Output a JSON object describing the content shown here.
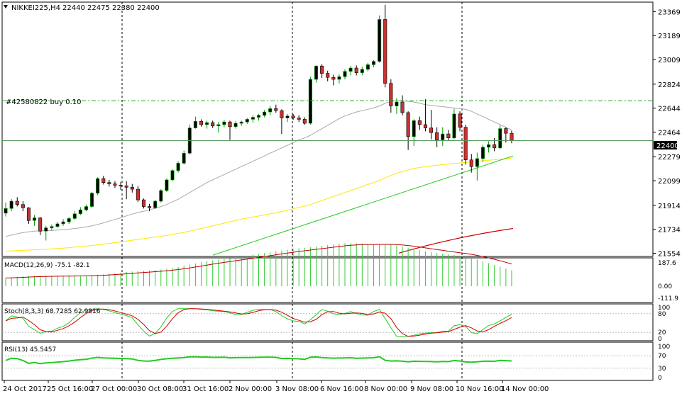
{
  "chart_data": {
    "type": "candlestick",
    "symbol": "NIKKEI225,H4",
    "ohlc_label": "22440 22475 22380 22400",
    "current_price": 22400,
    "current_price_label": "22400",
    "order_label": "#42580822 buy 0.10",
    "order_price": 22700,
    "price_ticks": [
      23369,
      23189,
      23009,
      22824,
      22644,
      22464,
      22279,
      22099,
      21914,
      21734,
      21554
    ],
    "price_range": [
      21530,
      23440
    ],
    "time_labels": [
      "24 Oct 2017",
      "25 Oct 16:00",
      "27 Oct 00:00",
      "30 Oct 08:00",
      "31 Oct 16:00",
      "2 Nov 00:00",
      "3 Nov 08:00",
      "6 Nov 16:00",
      "8 Nov 00:00",
      "9 Nov 08:00",
      "10 Nov 16:00",
      "14 Nov 00:00"
    ],
    "period_separators": [
      "27 Oct 00:00",
      "3 Nov 08:00",
      "10 Nov 16:00"
    ],
    "candles": [
      [
        21855,
        21935,
        21830,
        21890
      ],
      [
        21890,
        21960,
        21870,
        21945
      ],
      [
        21945,
        21975,
        21905,
        21920
      ],
      [
        21920,
        21945,
        21870,
        21895
      ],
      [
        21895,
        21900,
        21775,
        21800
      ],
      [
        21800,
        21840,
        21760,
        21820
      ],
      [
        21820,
        21825,
        21690,
        21720
      ],
      [
        21720,
        21760,
        21650,
        21745
      ],
      [
        21745,
        21770,
        21725,
        21755
      ],
      [
        21755,
        21790,
        21745,
        21775
      ],
      [
        21775,
        21810,
        21760,
        21790
      ],
      [
        21790,
        21825,
        21775,
        21815
      ],
      [
        21815,
        21870,
        21805,
        21850
      ],
      [
        21850,
        21900,
        21840,
        21880
      ],
      [
        21880,
        21920,
        21870,
        21905
      ],
      [
        21905,
        22015,
        21895,
        22005
      ],
      [
        22005,
        22125,
        21990,
        22115
      ],
      [
        22115,
        22135,
        22070,
        22085
      ],
      [
        22085,
        22105,
        22055,
        22075
      ],
      [
        22075,
        22095,
        22045,
        22065
      ],
      [
        22065,
        22090,
        22030,
        22060
      ],
      [
        22060,
        22095,
        21960,
        22050
      ],
      [
        22050,
        22075,
        22010,
        22035
      ],
      [
        22035,
        22060,
        21940,
        21955
      ],
      [
        21955,
        21965,
        21890,
        21905
      ],
      [
        21905,
        21925,
        21870,
        21895
      ],
      [
        21895,
        21955,
        21885,
        21945
      ],
      [
        21945,
        22035,
        21935,
        22025
      ],
      [
        22025,
        22115,
        22015,
        22105
      ],
      [
        22105,
        22185,
        22095,
        22175
      ],
      [
        22175,
        22245,
        22160,
        22230
      ],
      [
        22230,
        22325,
        22220,
        22305
      ],
      [
        22305,
        22520,
        22295,
        22495
      ],
      [
        22495,
        22580,
        22490,
        22545
      ],
      [
        22545,
        22560,
        22505,
        22520
      ],
      [
        22520,
        22550,
        22490,
        22535
      ],
      [
        22535,
        22550,
        22495,
        22510
      ],
      [
        22510,
        22540,
        22460,
        22520
      ],
      [
        22520,
        22555,
        22500,
        22540
      ],
      [
        22540,
        22550,
        22405,
        22505
      ],
      [
        22505,
        22545,
        22490,
        22530
      ],
      [
        22530,
        22550,
        22510,
        22540
      ],
      [
        22540,
        22570,
        22525,
        22560
      ],
      [
        22560,
        22590,
        22535,
        22575
      ],
      [
        22575,
        22600,
        22550,
        22590
      ],
      [
        22590,
        22630,
        22575,
        22615
      ],
      [
        22615,
        22660,
        22590,
        22640
      ],
      [
        22640,
        22670,
        22610,
        22625
      ],
      [
        22625,
        22635,
        22450,
        22570
      ],
      [
        22570,
        22600,
        22540,
        22585
      ],
      [
        22585,
        22600,
        22555,
        22570
      ],
      [
        22570,
        22590,
        22540,
        22560
      ],
      [
        22560,
        22575,
        22520,
        22530
      ],
      [
        22530,
        22880,
        22520,
        22860
      ],
      [
        22860,
        22965,
        22835,
        22960
      ],
      [
        22960,
        22975,
        22870,
        22905
      ],
      [
        22905,
        22925,
        22845,
        22875
      ],
      [
        22875,
        22895,
        22815,
        22860
      ],
      [
        22860,
        22900,
        22830,
        22880
      ],
      [
        22880,
        22935,
        22860,
        22920
      ],
      [
        22920,
        22960,
        22890,
        22945
      ],
      [
        22945,
        22965,
        22890,
        22910
      ],
      [
        22910,
        22955,
        22890,
        22935
      ],
      [
        22935,
        22985,
        22920,
        22970
      ],
      [
        22970,
        23005,
        22950,
        22995
      ],
      [
        22995,
        23340,
        22985,
        23310
      ],
      [
        23310,
        23420,
        22800,
        22830
      ],
      [
        22830,
        22860,
        22610,
        22660
      ],
      [
        22660,
        22720,
        22600,
        22690
      ],
      [
        22690,
        22740,
        22590,
        22610
      ],
      [
        22610,
        22620,
        22330,
        22430
      ],
      [
        22430,
        22560,
        22360,
        22550
      ],
      [
        22550,
        22580,
        22480,
        22520
      ],
      [
        22520,
        22710,
        22470,
        22495
      ],
      [
        22495,
        22630,
        22410,
        22460
      ],
      [
        22460,
        22500,
        22350,
        22405
      ],
      [
        22405,
        22500,
        22360,
        22450
      ],
      [
        22450,
        22480,
        22400,
        22420
      ],
      [
        22420,
        22640,
        22410,
        22600
      ],
      [
        22600,
        22620,
        22470,
        22500
      ],
      [
        22500,
        22520,
        22220,
        22255
      ],
      [
        22255,
        22300,
        22160,
        22205
      ],
      [
        22205,
        22310,
        22100,
        22265
      ],
      [
        22265,
        22370,
        22240,
        22350
      ],
      [
        22350,
        22395,
        22310,
        22370
      ],
      [
        22370,
        22420,
        22320,
        22345
      ],
      [
        22345,
        22515,
        22335,
        22490
      ],
      [
        22490,
        22500,
        22385,
        22455
      ],
      [
        22455,
        22475,
        22380,
        22400
      ]
    ],
    "ma_gray": [
      21680,
      21690,
      21700,
      21710,
      21715,
      21720,
      21722,
      21724,
      21726,
      21728,
      21730,
      21735,
      21740,
      21745,
      21752,
      21760,
      21770,
      21782,
      21795,
      21808,
      21820,
      21835,
      21848,
      21860,
      21870,
      21880,
      21892,
      21905,
      21920,
      21940,
      21960,
      21985,
      22010,
      22035,
      22060,
      22085,
      22105,
      22125,
      22145,
      22165,
      22185,
      22205,
      22225,
      22245,
      22265,
      22285,
      22305,
      22325,
      22345,
      22365,
      22385,
      22405,
      22420,
      22440,
      22465,
      22490,
      22515,
      22540,
      22565,
      22585,
      22600,
      22615,
      22625,
      22635,
      22645,
      22660,
      22680,
      22695,
      22700,
      22700,
      22695,
      22690,
      22680,
      22670,
      22665,
      22660,
      22655,
      22650,
      22645,
      22640,
      22635,
      22620,
      22600,
      22580,
      22560,
      22540,
      22520,
      22500,
      22480
    ],
    "ma_yellow": [
      21570,
      21572,
      21574,
      21576,
      21578,
      21580,
      21582,
      21584,
      21587,
      21590,
      21593,
      21596,
      21600,
      21604,
      21608,
      21612,
      21617,
      21622,
      21628,
      21634,
      21640,
      21646,
      21652,
      21658,
      21664,
      21670,
      21676,
      21682,
      21688,
      21695,
      21703,
      21711,
      21720,
      21730,
      21740,
      21750,
      21760,
      21770,
      21780,
      21790,
      21800,
      21810,
      21818,
      21826,
      21834,
      21842,
      21850,
      21858,
      21868,
      21878,
      21888,
      21898,
      21908,
      21920,
      21935,
      21950,
      21965,
      21980,
      21995,
      22010,
      22025,
      22040,
      22055,
      22070,
      22085,
      22100,
      22120,
      22138,
      22154,
      22168,
      22180,
      22190,
      22198,
      22204,
      22210,
      22215,
      22220,
      22224,
      22228,
      22232,
      22236,
      22240,
      22244,
      22248,
      22252,
      22256,
      22260,
      22264,
      22268
    ],
    "ma_green_start": 21540,
    "ma_green_end": 22285,
    "ma_red_start": 21555,
    "ma_red_end": 21740,
    "macd_label": "MACD(12,26,9) -75.1 -82.1",
    "macd_ticks": [
      "187.6",
      "0.00",
      "-111.9"
    ],
    "stoch_label": "Stoch(8,3,3) 68.7285 62.9816",
    "stoch_ticks": [
      "100",
      "80",
      "20",
      "0"
    ],
    "rsi_label": "RSI(13) 45.5457",
    "rsi_ticks": [
      "100",
      "70",
      "30",
      "0"
    ]
  }
}
